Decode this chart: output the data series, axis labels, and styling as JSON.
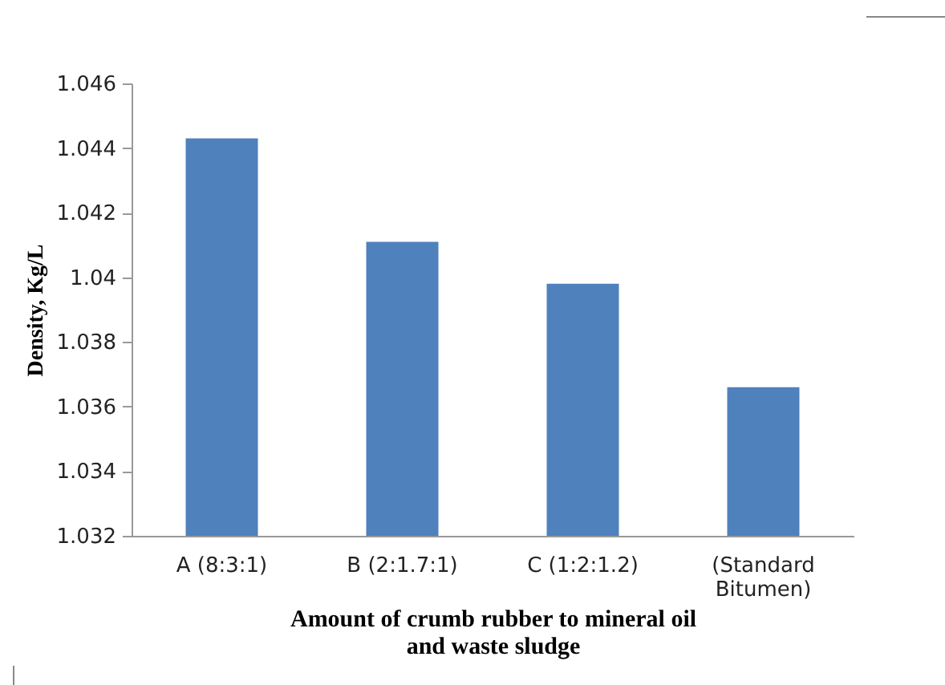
{
  "chart_data": {
    "type": "bar",
    "xlabel": "Amount  of crumb  rubber  to mineral oil and waste sludge",
    "ylabel": "Density, Kg/L",
    "categories": [
      "A (8:3:1)",
      "B (2:1.7:1)",
      "C (1:2:1.2)",
      "(Standard Bitumen)"
    ],
    "values": [
      1.0443,
      1.0411,
      1.0398,
      1.0366
    ],
    "color": "#4f81bd",
    "ylim": [
      1.032,
      1.046
    ],
    "yticks": [
      1.032,
      1.034,
      1.036,
      1.038,
      1.04,
      1.042,
      1.044,
      1.046
    ],
    "grid": false
  }
}
